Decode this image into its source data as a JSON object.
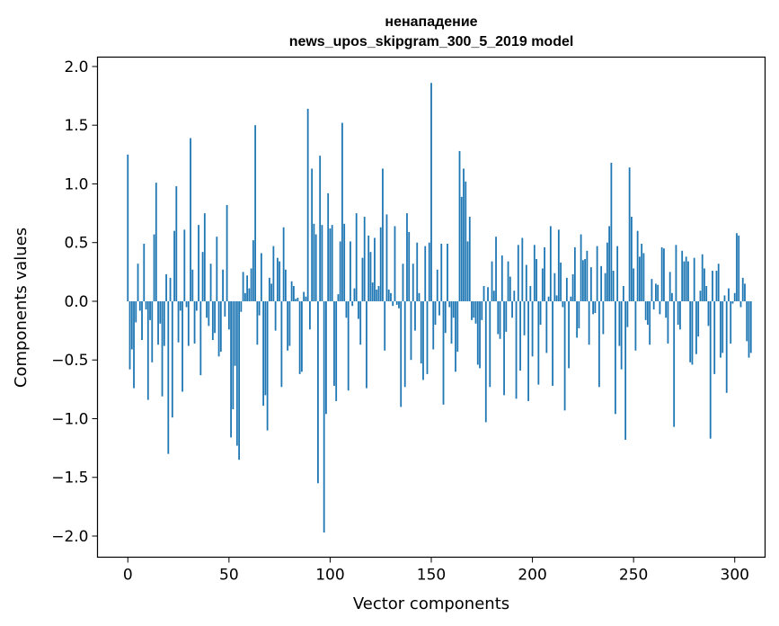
{
  "chart_data": {
    "type": "bar",
    "title_line1": "ненападение",
    "title_line2": "news_upos_skipgram_300_5_2019 model",
    "xlabel": "Vector components",
    "ylabel": "Components values",
    "xlim": [
      -15,
      315
    ],
    "ylim": [
      -2.18,
      2.08
    ],
    "xticks": [
      0,
      50,
      100,
      150,
      200,
      250,
      300
    ],
    "xtick_labels": [
      "0",
      "50",
      "100",
      "150",
      "200",
      "250",
      "300"
    ],
    "yticks": [
      2.0,
      1.5,
      1.0,
      0.5,
      0.0,
      -0.5,
      -1.0,
      -1.5,
      -2.0
    ],
    "ytick_labels": [
      "2.0",
      "1.5",
      "1.0",
      "0.5",
      "0.0",
      "−0.5",
      "−1.0",
      "−1.5",
      "−2.0"
    ],
    "bar_color": "#1f77b4",
    "grid": false,
    "values": [
      1.25,
      -0.58,
      -0.41,
      -0.74,
      -0.18,
      0.32,
      -0.08,
      -0.33,
      0.49,
      -0.07,
      -0.84,
      -0.16,
      -0.52,
      0.57,
      1.01,
      -0.37,
      -0.19,
      -0.81,
      -0.38,
      0.23,
      -1.3,
      0.2,
      -0.99,
      0.6,
      0.98,
      -0.35,
      -0.08,
      -0.77,
      0.61,
      -0.05,
      -0.38,
      1.39,
      0.27,
      -0.36,
      -0.08,
      0.65,
      -0.63,
      0.42,
      0.75,
      -0.14,
      -0.21,
      0.32,
      -0.33,
      -0.27,
      0.55,
      -0.47,
      -0.43,
      0.27,
      -0.13,
      0.82,
      -0.24,
      -1.16,
      -0.92,
      -0.55,
      -1.23,
      -1.35,
      -0.09,
      0.25,
      0.07,
      0.22,
      0.11,
      0.28,
      0.52,
      1.5,
      -0.37,
      -0.12,
      0.41,
      -0.89,
      -0.8,
      -1.1,
      0.2,
      0.15,
      0.47,
      -0.25,
      0.37,
      0.34,
      -0.73,
      0.63,
      0.27,
      -0.42,
      -0.38,
      0.17,
      0.13,
      0.02,
      0.03,
      -0.62,
      -0.6,
      0.08,
      0.04,
      1.64,
      -0.24,
      1.13,
      0.66,
      0.57,
      -1.55,
      1.24,
      0.65,
      -1.97,
      -0.96,
      0.92,
      0.62,
      0.65,
      -0.72,
      -0.85,
      0.06,
      0.51,
      1.52,
      0.66,
      -0.14,
      -0.76,
      0.51,
      -0.04,
      0.11,
      0.75,
      -0.15,
      -0.37,
      0.37,
      0.72,
      -0.74,
      0.56,
      0.42,
      0.16,
      0.54,
      0.1,
      0.13,
      0.63,
      1.13,
      -0.42,
      0.74,
      0.1,
      0.07,
      -0.04,
      0.64,
      -0.03,
      -0.06,
      -0.9,
      0.32,
      -0.73,
      0.75,
      0.59,
      -0.5,
      0.32,
      -0.25,
      0.5,
      0.07,
      -0.53,
      -0.67,
      0.47,
      -0.62,
      0.5,
      1.86,
      -0.41,
      -0.2,
      0.27,
      -0.12,
      0.49,
      -0.88,
      -0.27,
      0.49,
      -0.05,
      -0.36,
      -0.14,
      -0.6,
      -0.43,
      1.28,
      0.89,
      1.13,
      1.02,
      0.51,
      0.72,
      -0.16,
      -0.14,
      -0.19,
      -0.54,
      -0.57,
      -0.16,
      0.13,
      -1.03,
      0.12,
      -0.73,
      0.34,
      0.09,
      0.55,
      -0.28,
      -0.32,
      0.39,
      -0.8,
      -0.26,
      0.34,
      0.21,
      -0.14,
      0.09,
      -0.83,
      0.48,
      -0.59,
      0.54,
      -0.29,
      0.31,
      -0.85,
      0.13,
      -0.47,
      0.48,
      0.36,
      -0.71,
      -0.2,
      0.28,
      0.46,
      -0.44,
      0.04,
      0.64,
      -0.72,
      0.24,
      0.05,
      0.61,
      0.33,
      -0.05,
      -0.93,
      0.2,
      -0.57,
      0.04,
      0.23,
      0.46,
      -0.31,
      -0.23,
      0.57,
      0.35,
      0.36,
      0.43,
      -0.37,
      0.29,
      -0.11,
      -0.1,
      0.47,
      -0.73,
      0.3,
      -0.28,
      0.24,
      0.5,
      0.64,
      1.18,
      0.26,
      -0.96,
      0.47,
      -0.38,
      -0.58,
      0.13,
      -1.18,
      -0.22,
      1.14,
      0.72,
      0.28,
      -0.42,
      0.6,
      0.38,
      0.49,
      0.41,
      -0.16,
      -0.2,
      -0.37,
      0.19,
      -0.07,
      0.15,
      0.14,
      -0.11,
      0.46,
      0.45,
      -0.14,
      -0.36,
      0.25,
      0.07,
      -1.07,
      0.48,
      -0.2,
      -0.24,
      0.43,
      0.34,
      0.38,
      0.34,
      -0.52,
      -0.54,
      0.37,
      -0.45,
      -0.3,
      0.09,
      0.4,
      0.28,
      0.13,
      -0.21,
      -1.17,
      0.26,
      -0.62,
      0.26,
      0.32,
      -0.48,
      -0.44,
      0.05,
      -0.78,
      0.11,
      -0.36,
      -0.02,
      0.07,
      0.58,
      0.56,
      -0.05,
      0.2,
      0.15,
      -0.34,
      -0.48,
      -0.44
    ]
  }
}
